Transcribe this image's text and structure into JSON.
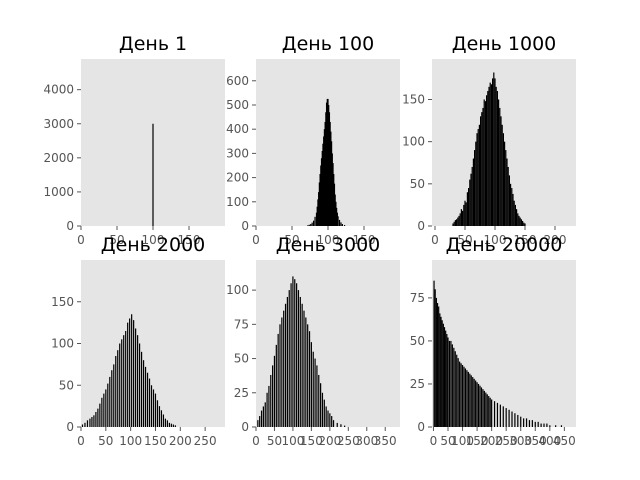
{
  "chart_data": [
    {
      "type": "bar",
      "title": "День 1",
      "xlim": [
        0,
        200
      ],
      "ylim": [
        0,
        4900
      ],
      "xticks": [
        0,
        50,
        100,
        150
      ],
      "yticks": [
        0,
        1000,
        2000,
        3000,
        4000
      ],
      "bar_color": "#000000",
      "background": "#e5e5e5",
      "grid": false,
      "points": [
        [
          100,
          3000
        ]
      ]
    },
    {
      "type": "bar",
      "title": "День 100",
      "xlim": [
        0,
        200
      ],
      "ylim": [
        0,
        690
      ],
      "xticks": [
        0,
        50,
        100,
        150
      ],
      "yticks": [
        0,
        100,
        200,
        300,
        400,
        500,
        600
      ],
      "bar_color": "#000000",
      "background": "#e5e5e5",
      "grid": false,
      "points": [
        [
          72,
          3
        ],
        [
          74,
          5
        ],
        [
          76,
          8
        ],
        [
          78,
          14
        ],
        [
          80,
          22
        ],
        [
          82,
          38
        ],
        [
          84,
          55
        ],
        [
          85,
          80
        ],
        [
          86,
          110
        ],
        [
          87,
          140
        ],
        [
          88,
          180
        ],
        [
          89,
          215
        ],
        [
          90,
          250
        ],
        [
          91,
          280
        ],
        [
          92,
          310
        ],
        [
          93,
          340
        ],
        [
          94,
          370
        ],
        [
          95,
          400
        ],
        [
          96,
          430
        ],
        [
          97,
          470
        ],
        [
          98,
          510
        ],
        [
          99,
          525
        ],
        [
          100,
          525
        ],
        [
          101,
          500
        ],
        [
          102,
          470
        ],
        [
          103,
          430
        ],
        [
          104,
          390
        ],
        [
          105,
          350
        ],
        [
          106,
          300
        ],
        [
          107,
          260
        ],
        [
          108,
          215
        ],
        [
          109,
          175
        ],
        [
          110,
          130
        ],
        [
          111,
          100
        ],
        [
          112,
          75
        ],
        [
          113,
          55
        ],
        [
          114,
          40
        ],
        [
          116,
          25
        ],
        [
          118,
          15
        ],
        [
          120,
          8
        ],
        [
          123,
          4
        ]
      ]
    },
    {
      "type": "bar",
      "title": "День 1000",
      "xlim": [
        -5,
        235
      ],
      "ylim": [
        0,
        198
      ],
      "xticks": [
        0,
        50,
        100,
        150,
        200
      ],
      "yticks": [
        0,
        50,
        100,
        150
      ],
      "bar_color": "#000000",
      "background": "#e5e5e5",
      "grid": false,
      "points": [
        [
          30,
          3
        ],
        [
          32,
          5
        ],
        [
          34,
          7
        ],
        [
          36,
          8
        ],
        [
          38,
          10
        ],
        [
          40,
          12
        ],
        [
          42,
          15
        ],
        [
          44,
          20
        ],
        [
          46,
          18
        ],
        [
          48,
          25
        ],
        [
          50,
          30
        ],
        [
          52,
          28
        ],
        [
          54,
          40
        ],
        [
          56,
          45
        ],
        [
          58,
          55
        ],
        [
          60,
          62
        ],
        [
          62,
          70
        ],
        [
          64,
          80
        ],
        [
          66,
          90
        ],
        [
          68,
          100
        ],
        [
          70,
          110
        ],
        [
          72,
          115
        ],
        [
          74,
          120
        ],
        [
          76,
          130
        ],
        [
          78,
          135
        ],
        [
          80,
          140
        ],
        [
          82,
          150
        ],
        [
          84,
          148
        ],
        [
          86,
          155
        ],
        [
          88,
          160
        ],
        [
          90,
          165
        ],
        [
          92,
          170
        ],
        [
          94,
          168
        ],
        [
          96,
          175
        ],
        [
          98,
          182
        ],
        [
          100,
          175
        ],
        [
          102,
          165
        ],
        [
          104,
          160
        ],
        [
          106,
          150
        ],
        [
          108,
          140
        ],
        [
          110,
          130
        ],
        [
          112,
          120
        ],
        [
          114,
          110
        ],
        [
          116,
          100
        ],
        [
          118,
          90
        ],
        [
          120,
          80
        ],
        [
          122,
          70
        ],
        [
          124,
          60
        ],
        [
          126,
          50
        ],
        [
          128,
          45
        ],
        [
          130,
          38
        ],
        [
          132,
          30
        ],
        [
          134,
          25
        ],
        [
          136,
          20
        ],
        [
          138,
          15
        ],
        [
          140,
          12
        ],
        [
          142,
          10
        ],
        [
          144,
          8
        ],
        [
          146,
          6
        ],
        [
          148,
          4
        ],
        [
          150,
          3
        ]
      ]
    },
    {
      "type": "bar",
      "title": "День 2000",
      "xlim": [
        0,
        290
      ],
      "ylim": [
        0,
        200
      ],
      "xticks": [
        0,
        50,
        100,
        150,
        200,
        250
      ],
      "yticks": [
        0,
        50,
        100,
        150
      ],
      "bar_color": "#000000",
      "background": "#e5e5e5",
      "grid": false,
      "points": [
        [
          3,
          3
        ],
        [
          8,
          5
        ],
        [
          13,
          8
        ],
        [
          18,
          10
        ],
        [
          22,
          12
        ],
        [
          26,
          14
        ],
        [
          30,
          18
        ],
        [
          34,
          22
        ],
        [
          38,
          28
        ],
        [
          42,
          35
        ],
        [
          46,
          40
        ],
        [
          50,
          45
        ],
        [
          54,
          52
        ],
        [
          58,
          60
        ],
        [
          62,
          68
        ],
        [
          66,
          75
        ],
        [
          70,
          85
        ],
        [
          74,
          92
        ],
        [
          78,
          100
        ],
        [
          82,
          105
        ],
        [
          86,
          110
        ],
        [
          90,
          115
        ],
        [
          94,
          125
        ],
        [
          98,
          130
        ],
        [
          102,
          135
        ],
        [
          106,
          128
        ],
        [
          110,
          118
        ],
        [
          114,
          110
        ],
        [
          118,
          100
        ],
        [
          122,
          90
        ],
        [
          126,
          80
        ],
        [
          130,
          72
        ],
        [
          134,
          65
        ],
        [
          138,
          58
        ],
        [
          142,
          50
        ],
        [
          146,
          45
        ],
        [
          150,
          40
        ],
        [
          154,
          32
        ],
        [
          158,
          25
        ],
        [
          162,
          20
        ],
        [
          166,
          15
        ],
        [
          170,
          10
        ],
        [
          174,
          8
        ],
        [
          178,
          5
        ],
        [
          182,
          4
        ],
        [
          186,
          3
        ],
        [
          190,
          2
        ]
      ]
    },
    {
      "type": "bar",
      "title": "День 3000",
      "xlim": [
        0,
        390
      ],
      "ylim": [
        0,
        122
      ],
      "xticks": [
        0,
        50,
        100,
        150,
        200,
        250,
        300,
        350
      ],
      "yticks": [
        0,
        25,
        50,
        75,
        100
      ],
      "bar_color": "#000000",
      "background": "#e5e5e5",
      "grid": false,
      "points": [
        [
          5,
          5
        ],
        [
          10,
          8
        ],
        [
          15,
          12
        ],
        [
          20,
          15
        ],
        [
          25,
          18
        ],
        [
          30,
          25
        ],
        [
          35,
          30
        ],
        [
          40,
          38
        ],
        [
          45,
          45
        ],
        [
          50,
          52
        ],
        [
          55,
          60
        ],
        [
          60,
          68
        ],
        [
          65,
          75
        ],
        [
          70,
          80
        ],
        [
          75,
          85
        ],
        [
          80,
          90
        ],
        [
          85,
          95
        ],
        [
          90,
          100
        ],
        [
          95,
          105
        ],
        [
          100,
          110
        ],
        [
          105,
          108
        ],
        [
          110,
          105
        ],
        [
          115,
          100
        ],
        [
          120,
          95
        ],
        [
          125,
          90
        ],
        [
          130,
          85
        ],
        [
          135,
          80
        ],
        [
          140,
          75
        ],
        [
          145,
          70
        ],
        [
          150,
          62
        ],
        [
          155,
          55
        ],
        [
          160,
          50
        ],
        [
          165,
          45
        ],
        [
          170,
          38
        ],
        [
          175,
          32
        ],
        [
          180,
          25
        ],
        [
          185,
          20
        ],
        [
          190,
          15
        ],
        [
          195,
          12
        ],
        [
          200,
          10
        ],
        [
          205,
          8
        ],
        [
          210,
          5
        ],
        [
          220,
          3
        ],
        [
          230,
          2
        ],
        [
          240,
          1
        ]
      ]
    },
    {
      "type": "bar",
      "title": "День 20000",
      "xlim": [
        -5,
        490
      ],
      "ylim": [
        0,
        97
      ],
      "xticks": [
        0,
        50,
        100,
        150,
        200,
        250,
        300,
        350,
        400,
        450
      ],
      "yticks": [
        0,
        25,
        50,
        75
      ],
      "bar_color": "#000000",
      "background": "#e5e5e5",
      "grid": false,
      "points": [
        [
          2,
          85
        ],
        [
          6,
          80
        ],
        [
          10,
          75
        ],
        [
          14,
          72
        ],
        [
          18,
          70
        ],
        [
          22,
          66
        ],
        [
          26,
          64
        ],
        [
          30,
          62
        ],
        [
          34,
          60
        ],
        [
          38,
          58
        ],
        [
          42,
          56
        ],
        [
          46,
          54
        ],
        [
          50,
          52
        ],
        [
          55,
          50
        ],
        [
          60,
          50
        ],
        [
          65,
          48
        ],
        [
          70,
          46
        ],
        [
          75,
          44
        ],
        [
          80,
          42
        ],
        [
          85,
          40
        ],
        [
          90,
          38
        ],
        [
          95,
          37
        ],
        [
          100,
          36
        ],
        [
          105,
          35
        ],
        [
          110,
          34
        ],
        [
          115,
          33
        ],
        [
          120,
          32
        ],
        [
          125,
          31
        ],
        [
          130,
          30
        ],
        [
          135,
          29
        ],
        [
          140,
          28
        ],
        [
          145,
          27
        ],
        [
          150,
          26
        ],
        [
          155,
          25
        ],
        [
          160,
          24
        ],
        [
          165,
          23
        ],
        [
          170,
          22
        ],
        [
          175,
          21
        ],
        [
          180,
          20
        ],
        [
          185,
          19
        ],
        [
          190,
          18
        ],
        [
          195,
          17
        ],
        [
          200,
          16
        ],
        [
          210,
          15
        ],
        [
          220,
          14
        ],
        [
          230,
          13
        ],
        [
          240,
          12
        ],
        [
          250,
          11
        ],
        [
          260,
          10
        ],
        [
          270,
          9
        ],
        [
          280,
          8
        ],
        [
          290,
          7
        ],
        [
          300,
          6
        ],
        [
          310,
          5
        ],
        [
          320,
          5
        ],
        [
          330,
          4
        ],
        [
          340,
          4
        ],
        [
          350,
          3
        ],
        [
          360,
          3
        ],
        [
          370,
          2
        ],
        [
          380,
          2
        ],
        [
          390,
          2
        ],
        [
          400,
          1
        ],
        [
          420,
          1
        ],
        [
          440,
          1
        ]
      ]
    }
  ]
}
